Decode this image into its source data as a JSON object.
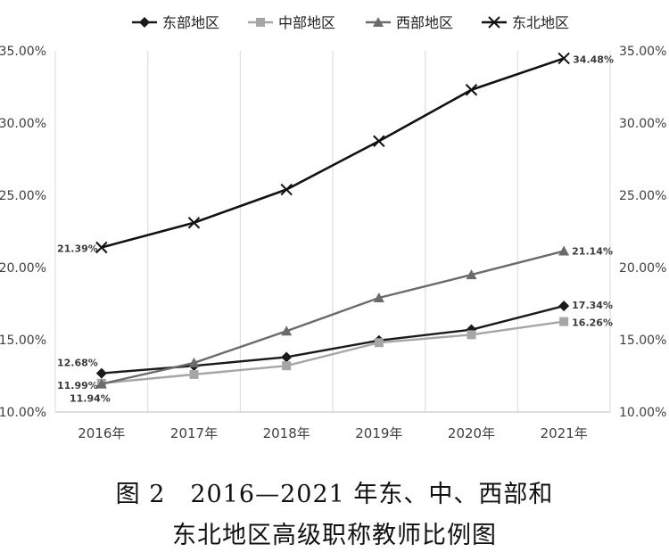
{
  "chart_data": {
    "type": "line",
    "categories": [
      "2016年",
      "2017年",
      "2018年",
      "2019年",
      "2020年",
      "2021年"
    ],
    "series": [
      {
        "name": "东部地区",
        "values": [
          12.68,
          13.2,
          13.8,
          14.95,
          15.7,
          17.34
        ],
        "color": "#1a1a1a",
        "marker": "diamond"
      },
      {
        "name": "中部地区",
        "values": [
          11.99,
          12.6,
          13.2,
          14.8,
          15.35,
          16.26
        ],
        "color": "#a6a6a6",
        "marker": "square"
      },
      {
        "name": "西部地区",
        "values": [
          11.94,
          13.4,
          15.6,
          17.9,
          19.5,
          21.14
        ],
        "color": "#6b6b6b",
        "marker": "triangle"
      },
      {
        "name": "东北地区",
        "values": [
          21.39,
          23.1,
          25.4,
          28.75,
          32.3,
          34.48
        ],
        "color": "#111111",
        "marker": "x"
      }
    ],
    "ylim": [
      10,
      35
    ],
    "yticks": [
      "10.00%",
      "15.00%",
      "20.00%",
      "25.00%",
      "30.00%",
      "35.00%"
    ],
    "y_axis_both_sides": true,
    "data_labels": [
      {
        "series": 0,
        "index": 0,
        "text": "12.68%"
      },
      {
        "series": 1,
        "index": 0,
        "text": "11.99%"
      },
      {
        "series": 2,
        "index": 0,
        "text": "11.94%"
      },
      {
        "series": 3,
        "index": 0,
        "text": "21.39%"
      },
      {
        "series": 0,
        "index": 5,
        "text": "17.34%"
      },
      {
        "series": 1,
        "index": 5,
        "text": "16.26%"
      },
      {
        "series": 2,
        "index": 5,
        "text": "21.14%"
      },
      {
        "series": 3,
        "index": 5,
        "text": "34.48%"
      }
    ],
    "grid": "vertical",
    "legend_position": "top"
  },
  "caption": {
    "line1": "图 2　2016—2021 年东、中、西部和",
    "line2": "东北地区高级职称教师比例图"
  }
}
